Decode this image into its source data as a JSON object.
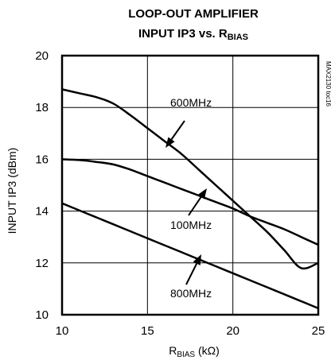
{
  "chart_data": {
    "type": "line",
    "title_line1": "LOOP-OUT AMPLIFIER",
    "title_line2_main": "INPUT IP3 vs. R",
    "title_line2_sub": "BIAS",
    "ylabel": "INPUT IP3 (dBm)",
    "xlabel_main": "R",
    "xlabel_sub": "BIAS",
    "xlabel_unit": " (kΩ)",
    "side_label": "MAX2130 toc16",
    "xlim": [
      10,
      25
    ],
    "ylim": [
      10,
      20
    ],
    "xticks": [
      "10",
      "15",
      "20",
      "25"
    ],
    "yticks": [
      "10",
      "12",
      "14",
      "16",
      "18",
      "20"
    ],
    "grid": true,
    "series": [
      {
        "name": "600MHz",
        "x": [
          10,
          11,
          12,
          13,
          14,
          15,
          16,
          17,
          18,
          19,
          20,
          21,
          22,
          23,
          24,
          25
        ],
        "values": [
          18.7,
          18.55,
          18.4,
          18.15,
          17.7,
          17.2,
          16.7,
          16.2,
          15.6,
          15.0,
          14.4,
          13.8,
          13.2,
          12.5,
          11.8,
          12.0
        ]
      },
      {
        "name": "100MHz",
        "x": [
          10,
          11,
          12,
          13,
          14,
          15,
          16,
          17,
          18,
          19,
          20,
          21,
          22,
          23,
          24,
          25
        ],
        "values": [
          16.0,
          15.97,
          15.9,
          15.8,
          15.6,
          15.35,
          15.1,
          14.85,
          14.6,
          14.35,
          14.1,
          13.8,
          13.55,
          13.3,
          13.0,
          12.7
        ]
      },
      {
        "name": "800MHz",
        "x": [
          10,
          11,
          12,
          13,
          14,
          15,
          16,
          17,
          18,
          19,
          20,
          21,
          22,
          23,
          24,
          25
        ],
        "values": [
          14.3,
          14.03,
          13.76,
          13.49,
          13.22,
          12.95,
          12.68,
          12.41,
          12.14,
          11.87,
          11.6,
          11.33,
          11.06,
          10.79,
          10.52,
          10.25
        ]
      }
    ],
    "annotations": [
      {
        "text": "600MHz",
        "series": "600MHz"
      },
      {
        "text": "100MHz",
        "series": "100MHz"
      },
      {
        "text": "800MHz",
        "series": "800MHz"
      }
    ]
  }
}
